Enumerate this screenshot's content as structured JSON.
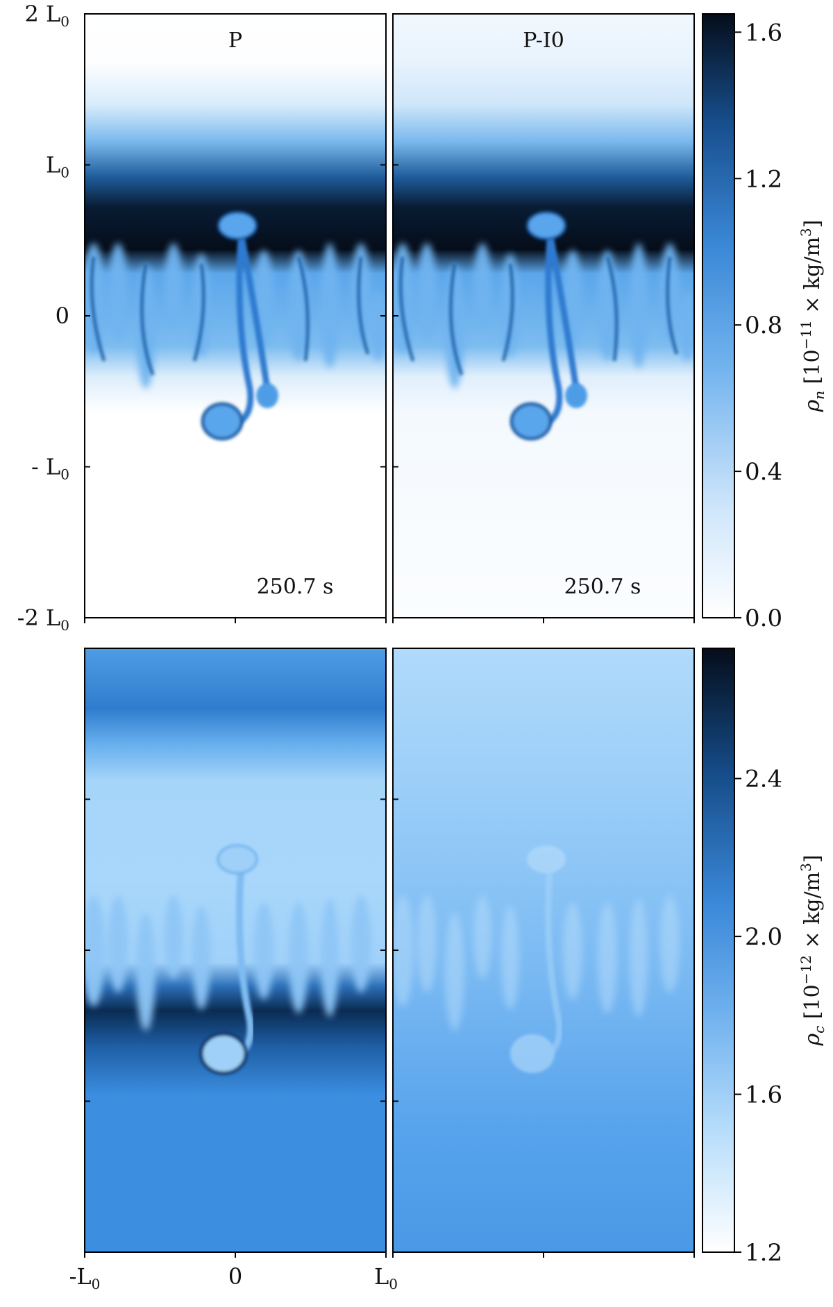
{
  "chart_data": [
    {
      "type": "heatmap",
      "quantity": "neutral density",
      "colorbar_label": "ρ_n [10^−11 × kg/m^3]",
      "colorbar_label_parts": {
        "symbol": "ρ",
        "sub": "n",
        "prefix": " [10",
        "exp": "−11",
        "mid": "× kg/m",
        "unit_exp": "3",
        "suffix": "]"
      },
      "colorbar_range": [
        0.0,
        1.65
      ],
      "colorbar_ticks": [
        "1.6",
        "1.2",
        "0.8",
        "0.4",
        "0.0"
      ],
      "colorbar_tick_values": [
        1.6,
        1.2,
        0.8,
        0.4,
        0.0
      ],
      "y_ticks": [
        {
          "value": 2,
          "label": "2 L",
          "sub": "0"
        },
        {
          "value": 1,
          "label": "L",
          "sub": "0"
        },
        {
          "value": 0,
          "label": "0",
          "sub": ""
        },
        {
          "value": -1,
          "label": "- L",
          "sub": "0"
        },
        {
          "value": -2,
          "label": "-2 L",
          "sub": "0"
        }
      ],
      "panels": [
        {
          "label": "P",
          "time": "250.7 s"
        },
        {
          "label": "P-I0",
          "time": "250.7 s"
        }
      ]
    },
    {
      "type": "heatmap",
      "quantity": "charged density",
      "colorbar_label": "ρ_c [10^−12 × kg/m^3]",
      "colorbar_label_parts": {
        "symbol": "ρ",
        "sub": "c",
        "prefix": " [10",
        "exp": "−12",
        "mid": "× kg/m",
        "unit_exp": "3",
        "suffix": "]"
      },
      "colorbar_range": [
        1.2,
        2.73
      ],
      "colorbar_ticks": [
        "2.4",
        "2.0",
        "1.6",
        "1.2"
      ],
      "colorbar_tick_values": [
        2.4,
        2.0,
        1.6,
        1.2
      ],
      "x_ticks": [
        {
          "value": -1,
          "label": "-L",
          "sub": "0"
        },
        {
          "value": 0,
          "label": "0",
          "sub": ""
        },
        {
          "value": 1,
          "label": "L",
          "sub": "0"
        }
      ]
    }
  ],
  "colors": {
    "cmap_dark": "#050d1a",
    "cmap_mid": "#3d8fe0",
    "cmap_light": "#ffffff"
  }
}
